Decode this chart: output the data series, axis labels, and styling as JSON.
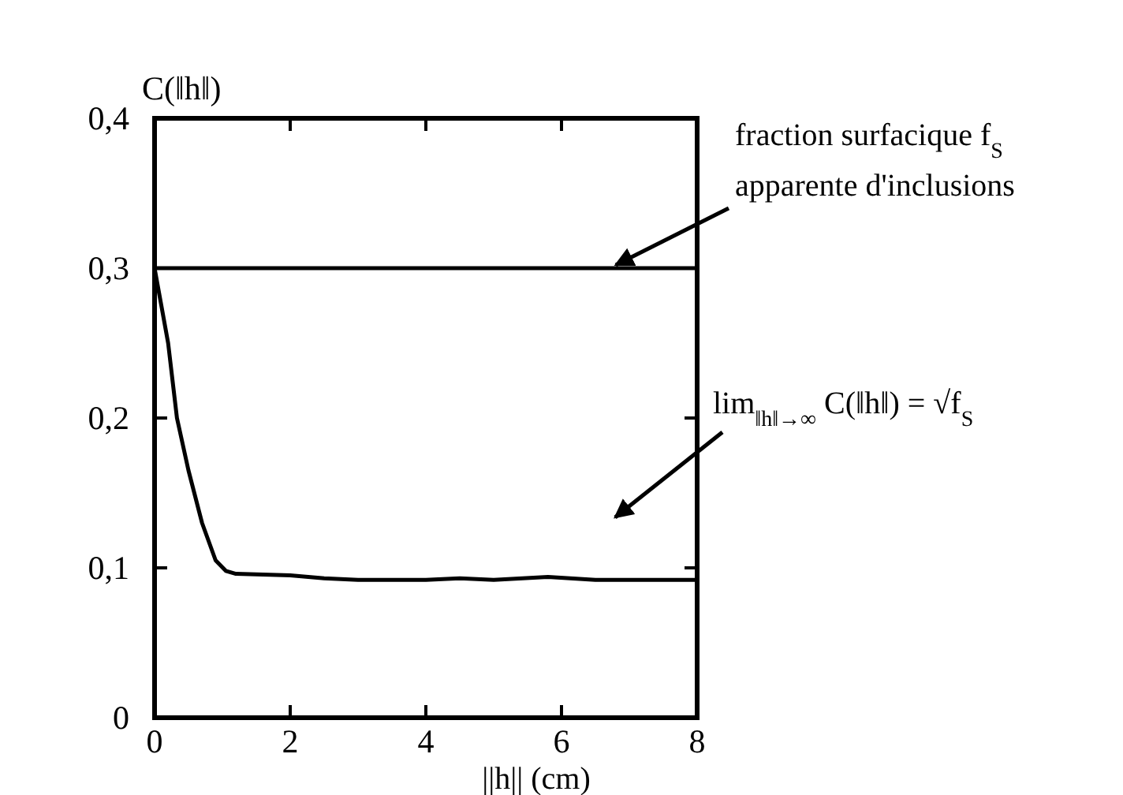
{
  "chart_data": {
    "type": "line",
    "xlabel": "||h|| (cm)",
    "ylabel": "C(‖h‖)",
    "x": [
      0,
      0.1,
      0.2,
      0.33,
      0.5,
      0.7,
      0.9,
      1.05,
      1.2,
      2,
      2.5,
      3,
      4,
      4.5,
      5,
      5.8,
      6.5,
      8
    ],
    "series": [
      {
        "color": "#000000",
        "values": [
          0.3,
          0.275,
          0.25,
          0.2,
          0.165,
          0.13,
          0.105,
          0.098,
          0.096,
          0.095,
          0.093,
          0.092,
          0.092,
          0.093,
          0.092,
          0.094,
          0.092,
          0.092
        ]
      }
    ],
    "xlim": [
      0,
      8
    ],
    "xticks": [
      0,
      2,
      4,
      6,
      8
    ],
    "ylim": [
      0,
      0.4
    ],
    "yticks": [
      {
        "value": 0,
        "label": "0"
      },
      {
        "value": 0.1,
        "label": "0,1"
      },
      {
        "value": 0.2,
        "label": "0,2"
      },
      {
        "value": 0.3,
        "label": "0,3"
      },
      {
        "value": 0.4,
        "label": "0,4"
      }
    ],
    "ref_lines": [
      {
        "axis": "y",
        "value": 0.3,
        "color": "#000000"
      }
    ],
    "annotations": [
      {
        "text": "fraction surfacique f$_{S}$\napparente d'inclusions",
        "x": 6.8,
        "y": 0.3
      },
      "lim$_{‖h‖→∞}$ C(‖h‖) = √f$_{S}$"
    ],
    "grid": false,
    "marker": "none",
    "line_style": "solid"
  }
}
